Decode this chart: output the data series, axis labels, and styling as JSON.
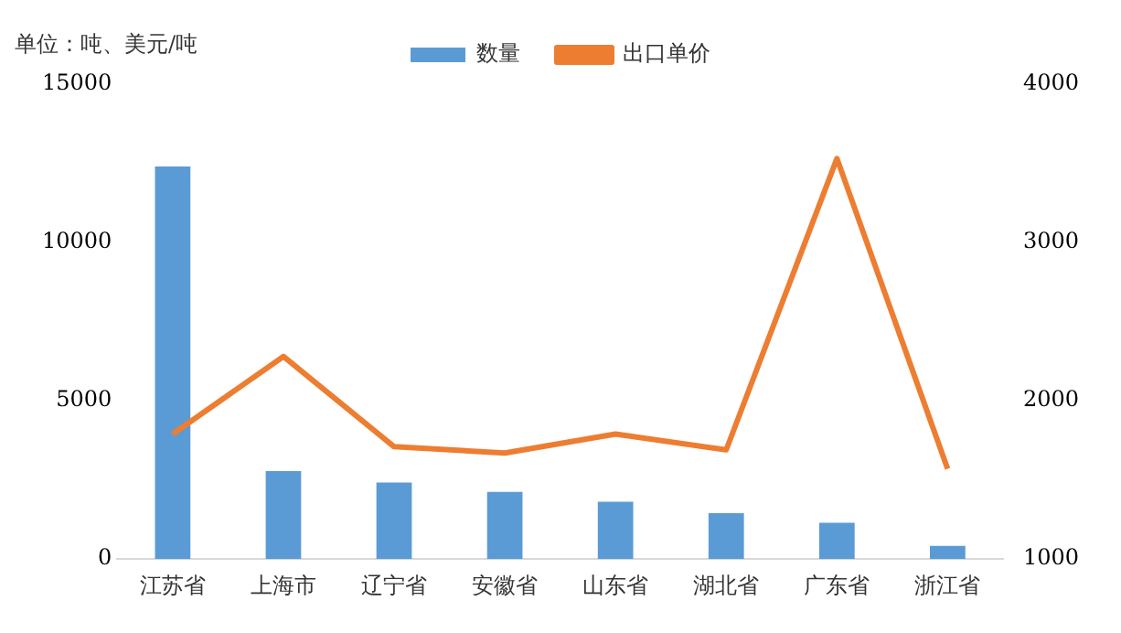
{
  "chart_data": {
    "type": "bar",
    "annotations": [
      "单位：吨、美元/吨"
    ],
    "categories": [
      "江苏省",
      "上海市",
      "辽宁省",
      "安徽省",
      "山东省",
      "湖北省",
      "广东省",
      "浙江省"
    ],
    "series": [
      {
        "name": "数量",
        "color": "#5b9bd5",
        "values": [
          12400,
          2780,
          2420,
          2120,
          1810,
          1450,
          1150,
          420
        ]
      },
      {
        "name": "出口单价",
        "type": "line",
        "axis": "y2",
        "color": "#ed7d31",
        "values": [
          1790,
          2280,
          1710,
          1670,
          1790,
          1690,
          3530,
          1570
        ]
      }
    ],
    "ylim": [
      0,
      15000
    ],
    "yticks": [
      0,
      5000,
      10000,
      15000
    ],
    "y2lim": [
      1000,
      4000
    ],
    "y2ticks": [
      1000,
      2000,
      3000,
      4000
    ],
    "grid": false,
    "legend": "top",
    "marker": "none"
  }
}
